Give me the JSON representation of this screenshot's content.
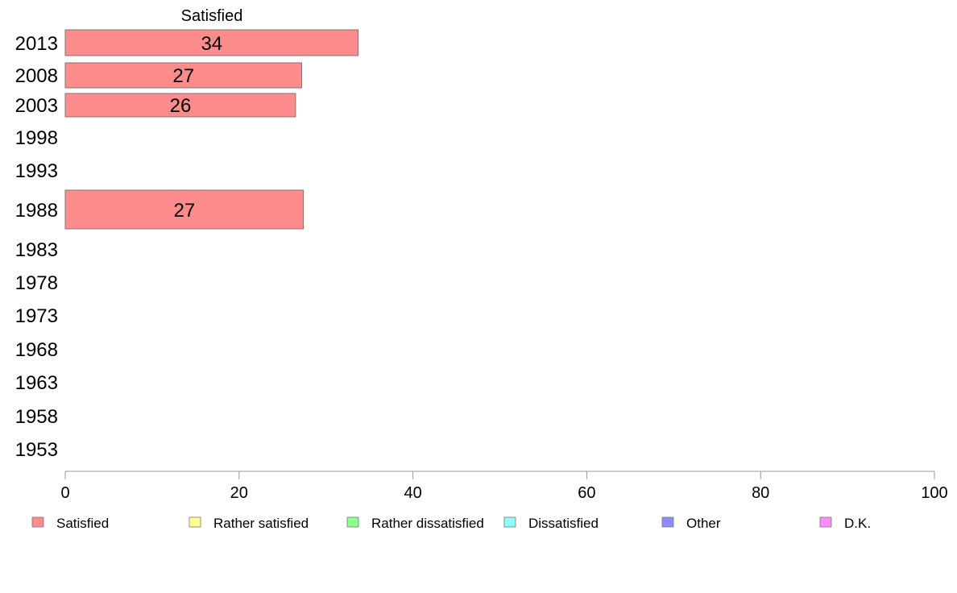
{
  "chart_data": {
    "type": "bar",
    "orientation": "horizontal",
    "stacked": true,
    "column_header": "Satisfied",
    "categories": [
      "2013",
      "2008",
      "2003",
      "1998",
      "1993",
      "1988",
      "1983",
      "1978",
      "1973",
      "1968",
      "1963",
      "1958",
      "1953"
    ],
    "series": [
      {
        "name": "Satisfied",
        "color": "#ff8c8c",
        "values": [
          33.7,
          27.2,
          26.5,
          null,
          null,
          27.4,
          null,
          null,
          null,
          null,
          null,
          null,
          null
        ],
        "labels": [
          "34",
          "27",
          "26",
          "",
          "",
          "27",
          "",
          "",
          "",
          "",
          "",
          "",
          ""
        ]
      },
      {
        "name": "Rather satisfied",
        "color": "#ffff8c",
        "values": [
          null,
          null,
          null,
          null,
          null,
          null,
          null,
          null,
          null,
          null,
          null,
          null,
          null
        ]
      },
      {
        "name": "Rather dissatisfied",
        "color": "#8cff8c",
        "values": [
          null,
          null,
          null,
          null,
          null,
          null,
          null,
          null,
          null,
          null,
          null,
          null,
          null
        ]
      },
      {
        "name": "Dissatisfied",
        "color": "#8cffff",
        "values": [
          null,
          null,
          null,
          null,
          null,
          null,
          null,
          null,
          null,
          null,
          null,
          null,
          null
        ]
      },
      {
        "name": "Other",
        "color": "#8c8cff",
        "values": [
          null,
          null,
          null,
          null,
          null,
          null,
          null,
          null,
          null,
          null,
          null,
          null,
          null
        ]
      },
      {
        "name": "D.K.",
        "color": "#ff8cff",
        "values": [
          null,
          null,
          null,
          null,
          null,
          null,
          null,
          null,
          null,
          null,
          null,
          null,
          null
        ]
      }
    ],
    "xlim": [
      0,
      100
    ],
    "xticks": [
      "0",
      "20",
      "40",
      "60",
      "80",
      "100"
    ],
    "grid": false,
    "legend_position": "bottom"
  }
}
